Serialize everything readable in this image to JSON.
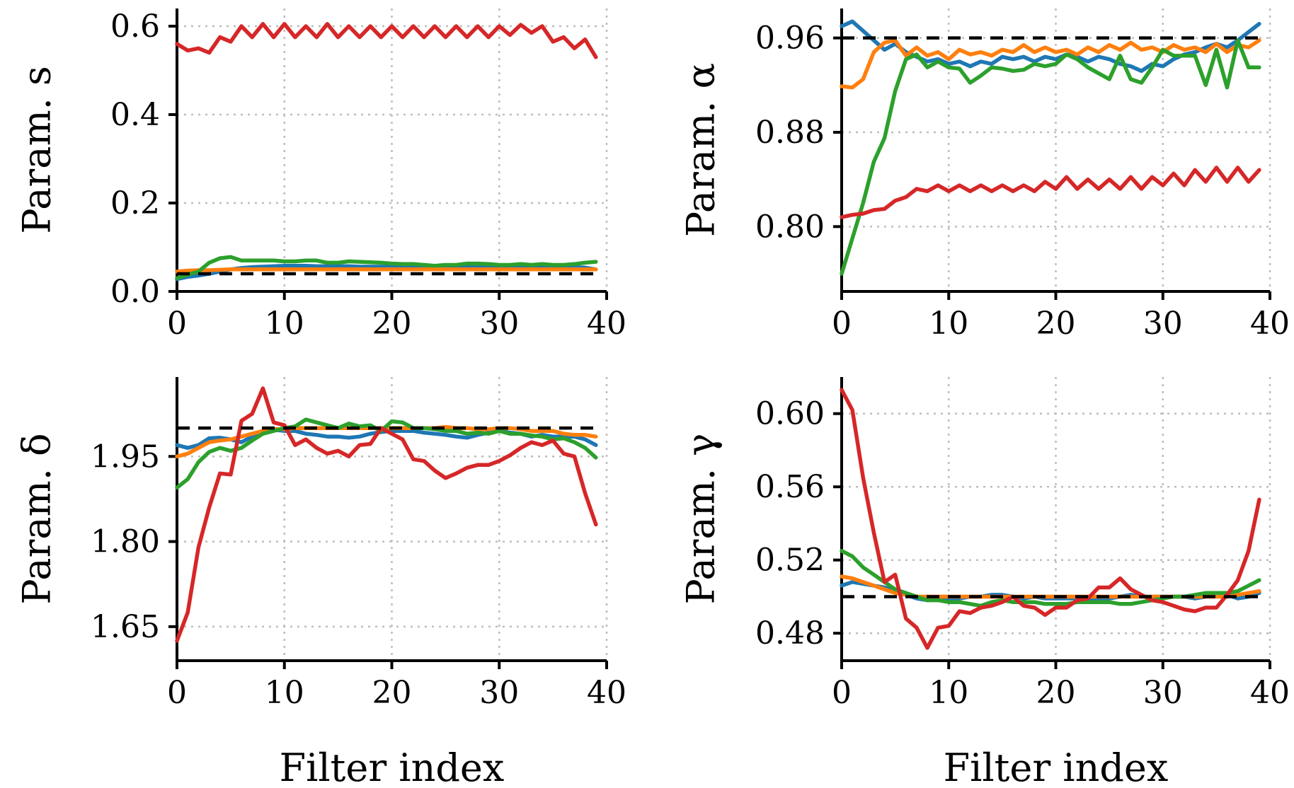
{
  "chart_data": [
    {
      "type": "line",
      "ylabel": "Param. s",
      "xlabel": "",
      "xlim": [
        0,
        40
      ],
      "ylim": [
        0,
        0.64
      ],
      "xticks": [
        0,
        10,
        20,
        30,
        40
      ],
      "yticks": [
        0.0,
        0.2,
        0.4,
        0.6
      ],
      "ytick_labels": [
        "0.0",
        "0.2",
        "0.4",
        "0.6"
      ],
      "reference": 0.04,
      "grid": true,
      "series": [
        {
          "color": "#1f77b4",
          "values": [
            0.028,
            0.033,
            0.036,
            0.04,
            0.045,
            0.05,
            0.053,
            0.055,
            0.056,
            0.057,
            0.058,
            0.058,
            0.058,
            0.057,
            0.057,
            0.057,
            0.057,
            0.056,
            0.056,
            0.056,
            0.056,
            0.056,
            0.055,
            0.055,
            0.055,
            0.055,
            0.055,
            0.055,
            0.055,
            0.055,
            0.055,
            0.055,
            0.055,
            0.055,
            0.055,
            0.055,
            0.055,
            0.055,
            0.054,
            0.05
          ]
        },
        {
          "color": "#ff7f0e",
          "values": [
            0.045,
            0.047,
            0.048,
            0.048,
            0.049,
            0.05,
            0.05,
            0.05,
            0.05,
            0.05,
            0.05,
            0.05,
            0.05,
            0.05,
            0.05,
            0.05,
            0.05,
            0.05,
            0.05,
            0.05,
            0.05,
            0.05,
            0.05,
            0.05,
            0.05,
            0.05,
            0.05,
            0.05,
            0.05,
            0.05,
            0.05,
            0.05,
            0.05,
            0.05,
            0.05,
            0.05,
            0.05,
            0.05,
            0.05,
            0.05
          ]
        },
        {
          "color": "#2ca02c",
          "values": [
            0.03,
            0.038,
            0.045,
            0.065,
            0.075,
            0.078,
            0.07,
            0.07,
            0.07,
            0.07,
            0.068,
            0.068,
            0.07,
            0.07,
            0.065,
            0.065,
            0.068,
            0.067,
            0.066,
            0.065,
            0.063,
            0.062,
            0.062,
            0.06,
            0.058,
            0.06,
            0.06,
            0.063,
            0.063,
            0.062,
            0.06,
            0.06,
            0.062,
            0.06,
            0.062,
            0.06,
            0.06,
            0.062,
            0.065,
            0.067
          ]
        },
        {
          "color": "#d62728",
          "values": [
            0.56,
            0.545,
            0.55,
            0.54,
            0.575,
            0.565,
            0.6,
            0.575,
            0.605,
            0.575,
            0.605,
            0.575,
            0.6,
            0.575,
            0.605,
            0.575,
            0.6,
            0.575,
            0.6,
            0.575,
            0.6,
            0.575,
            0.6,
            0.575,
            0.6,
            0.575,
            0.6,
            0.575,
            0.6,
            0.575,
            0.6,
            0.58,
            0.603,
            0.585,
            0.6,
            0.565,
            0.575,
            0.55,
            0.57,
            0.53
          ]
        }
      ]
    },
    {
      "type": "line",
      "ylabel": "Param. α",
      "xlabel": "",
      "xlim": [
        0,
        40
      ],
      "ylim": [
        0.745,
        0.985
      ],
      "xticks": [
        0,
        10,
        20,
        30,
        40
      ],
      "yticks": [
        0.8,
        0.88,
        0.96
      ],
      "ytick_labels": [
        "0.80",
        "0.88",
        "0.96"
      ],
      "reference": 0.96,
      "grid": true,
      "series": [
        {
          "color": "#1f77b4",
          "values": [
            0.97,
            0.974,
            0.966,
            0.958,
            0.95,
            0.955,
            0.948,
            0.944,
            0.94,
            0.942,
            0.938,
            0.94,
            0.936,
            0.94,
            0.938,
            0.944,
            0.942,
            0.944,
            0.94,
            0.944,
            0.942,
            0.946,
            0.944,
            0.94,
            0.944,
            0.942,
            0.938,
            0.936,
            0.932,
            0.938,
            0.936,
            0.942,
            0.946,
            0.948,
            0.952,
            0.955,
            0.952,
            0.958,
            0.965,
            0.972
          ]
        },
        {
          "color": "#ff7f0e",
          "values": [
            0.919,
            0.918,
            0.925,
            0.948,
            0.956,
            0.958,
            0.945,
            0.952,
            0.945,
            0.948,
            0.942,
            0.95,
            0.946,
            0.948,
            0.945,
            0.95,
            0.948,
            0.954,
            0.948,
            0.952,
            0.948,
            0.95,
            0.946,
            0.952,
            0.948,
            0.954,
            0.95,
            0.956,
            0.95,
            0.952,
            0.948,
            0.954,
            0.95,
            0.952,
            0.948,
            0.955,
            0.948,
            0.954,
            0.952,
            0.958
          ]
        },
        {
          "color": "#2ca02c",
          "values": [
            0.76,
            0.79,
            0.82,
            0.855,
            0.875,
            0.915,
            0.942,
            0.946,
            0.935,
            0.94,
            0.935,
            0.934,
            0.922,
            0.928,
            0.935,
            0.934,
            0.932,
            0.933,
            0.938,
            0.936,
            0.938,
            0.946,
            0.942,
            0.935,
            0.93,
            0.925,
            0.945,
            0.925,
            0.922,
            0.935,
            0.95,
            0.945,
            0.945,
            0.945,
            0.92,
            0.95,
            0.918,
            0.958,
            0.935,
            0.935
          ]
        },
        {
          "color": "#d62728",
          "values": [
            0.808,
            0.81,
            0.811,
            0.814,
            0.815,
            0.822,
            0.825,
            0.832,
            0.83,
            0.835,
            0.83,
            0.835,
            0.83,
            0.835,
            0.83,
            0.835,
            0.83,
            0.835,
            0.83,
            0.838,
            0.832,
            0.842,
            0.832,
            0.84,
            0.832,
            0.84,
            0.832,
            0.842,
            0.832,
            0.842,
            0.835,
            0.845,
            0.835,
            0.848,
            0.838,
            0.85,
            0.838,
            0.85,
            0.838,
            0.848
          ]
        }
      ]
    },
    {
      "type": "line",
      "ylabel": "Param. δ",
      "xlabel": "Filter index",
      "xlim": [
        0,
        40
      ],
      "ylim": [
        1.59,
        2.09
      ],
      "xticks": [
        0,
        10,
        20,
        30,
        40
      ],
      "yticks": [
        1.65,
        1.8,
        1.95
      ],
      "ytick_labels": [
        "1.65",
        "1.80",
        "1.95"
      ],
      "reference": 2.0,
      "grid": true,
      "series": [
        {
          "color": "#1f77b4",
          "values": [
            1.97,
            1.965,
            1.97,
            1.982,
            1.983,
            1.98,
            1.975,
            1.985,
            1.995,
            1.997,
            1.995,
            1.995,
            1.99,
            1.988,
            1.985,
            1.985,
            1.983,
            1.985,
            1.99,
            1.993,
            1.995,
            1.995,
            1.995,
            1.992,
            1.99,
            1.988,
            1.985,
            1.983,
            1.988,
            1.992,
            1.995,
            1.992,
            1.99,
            1.985,
            1.988,
            1.985,
            1.985,
            1.985,
            1.98,
            1.97
          ]
        },
        {
          "color": "#ff7f0e",
          "values": [
            1.95,
            1.955,
            1.965,
            1.975,
            1.978,
            1.98,
            1.985,
            1.99,
            1.995,
            1.998,
            1.998,
            2.0,
            2.0,
            2.0,
            2.0,
            2.0,
            2.0,
            2.0,
            2.0,
            2.0,
            2.0,
            2.0,
            2.0,
            2.0,
            2.0,
            2.002,
            2.0,
            2.0,
            1.998,
            1.998,
            2.0,
            2.0,
            1.998,
            1.995,
            1.995,
            1.995,
            1.99,
            1.988,
            1.988,
            1.985
          ]
        },
        {
          "color": "#2ca02c",
          "values": [
            1.895,
            1.91,
            1.94,
            1.958,
            1.965,
            1.96,
            1.965,
            1.978,
            1.99,
            1.995,
            2.0,
            2.003,
            2.015,
            2.01,
            2.005,
            2.0,
            2.008,
            2.003,
            2.005,
            1.995,
            2.012,
            2.01,
            2.0,
            2.0,
            1.998,
            1.995,
            1.995,
            1.99,
            1.992,
            1.99,
            1.995,
            1.99,
            1.99,
            1.987,
            1.985,
            1.98,
            1.982,
            1.975,
            1.965,
            1.948
          ]
        },
        {
          "color": "#d62728",
          "values": [
            1.625,
            1.675,
            1.79,
            1.86,
            1.92,
            1.918,
            2.013,
            2.025,
            2.07,
            2.01,
            2.005,
            1.97,
            1.98,
            1.965,
            1.955,
            1.96,
            1.95,
            1.97,
            1.972,
            2.0,
            1.99,
            1.98,
            1.945,
            1.942,
            1.925,
            1.912,
            1.92,
            1.93,
            1.935,
            1.935,
            1.942,
            1.952,
            1.965,
            1.975,
            1.97,
            1.978,
            1.955,
            1.95,
            1.885,
            1.83
          ]
        }
      ]
    },
    {
      "type": "line",
      "ylabel": "Param. γ",
      "xlabel": "Filter index",
      "xlim": [
        0,
        40
      ],
      "ylim": [
        0.465,
        0.62
      ],
      "xticks": [
        0,
        10,
        20,
        30,
        40
      ],
      "yticks": [
        0.48,
        0.52,
        0.56,
        0.6
      ],
      "ytick_labels": [
        "0.48",
        "0.52",
        "0.56",
        "0.60"
      ],
      "reference": 0.5,
      "grid": true,
      "series": [
        {
          "color": "#1f77b4",
          "values": [
            0.506,
            0.508,
            0.507,
            0.506,
            0.505,
            0.503,
            0.501,
            0.499,
            0.498,
            0.499,
            0.499,
            0.499,
            0.5,
            0.5,
            0.501,
            0.501,
            0.5,
            0.499,
            0.5,
            0.499,
            0.499,
            0.499,
            0.499,
            0.499,
            0.498,
            0.499,
            0.5,
            0.501,
            0.5,
            0.5,
            0.5,
            0.5,
            0.5,
            0.499,
            0.5,
            0.501,
            0.501,
            0.499,
            0.5,
            0.502
          ]
        },
        {
          "color": "#ff7f0e",
          "values": [
            0.511,
            0.51,
            0.508,
            0.506,
            0.504,
            0.502,
            0.501,
            0.5,
            0.5,
            0.5,
            0.5,
            0.5,
            0.5,
            0.5,
            0.5,
            0.5,
            0.5,
            0.5,
            0.5,
            0.5,
            0.5,
            0.5,
            0.5,
            0.5,
            0.5,
            0.5,
            0.5,
            0.5,
            0.5,
            0.5,
            0.5,
            0.5,
            0.5,
            0.5,
            0.5,
            0.5,
            0.5,
            0.501,
            0.502,
            0.503
          ]
        },
        {
          "color": "#2ca02c",
          "values": [
            0.525,
            0.522,
            0.516,
            0.512,
            0.508,
            0.504,
            0.502,
            0.5,
            0.498,
            0.498,
            0.497,
            0.497,
            0.496,
            0.495,
            0.497,
            0.498,
            0.497,
            0.497,
            0.497,
            0.496,
            0.496,
            0.496,
            0.497,
            0.497,
            0.497,
            0.497,
            0.496,
            0.496,
            0.497,
            0.498,
            0.499,
            0.5,
            0.5,
            0.501,
            0.502,
            0.502,
            0.502,
            0.503,
            0.506,
            0.509
          ]
        },
        {
          "color": "#d62728",
          "values": [
            0.613,
            0.602,
            0.565,
            0.535,
            0.508,
            0.512,
            0.488,
            0.483,
            0.472,
            0.483,
            0.484,
            0.492,
            0.491,
            0.494,
            0.495,
            0.497,
            0.5,
            0.495,
            0.494,
            0.49,
            0.494,
            0.494,
            0.498,
            0.499,
            0.505,
            0.505,
            0.51,
            0.504,
            0.501,
            0.498,
            0.497,
            0.495,
            0.493,
            0.492,
            0.494,
            0.494,
            0.501,
            0.509,
            0.525,
            0.553
          ]
        }
      ]
    }
  ]
}
